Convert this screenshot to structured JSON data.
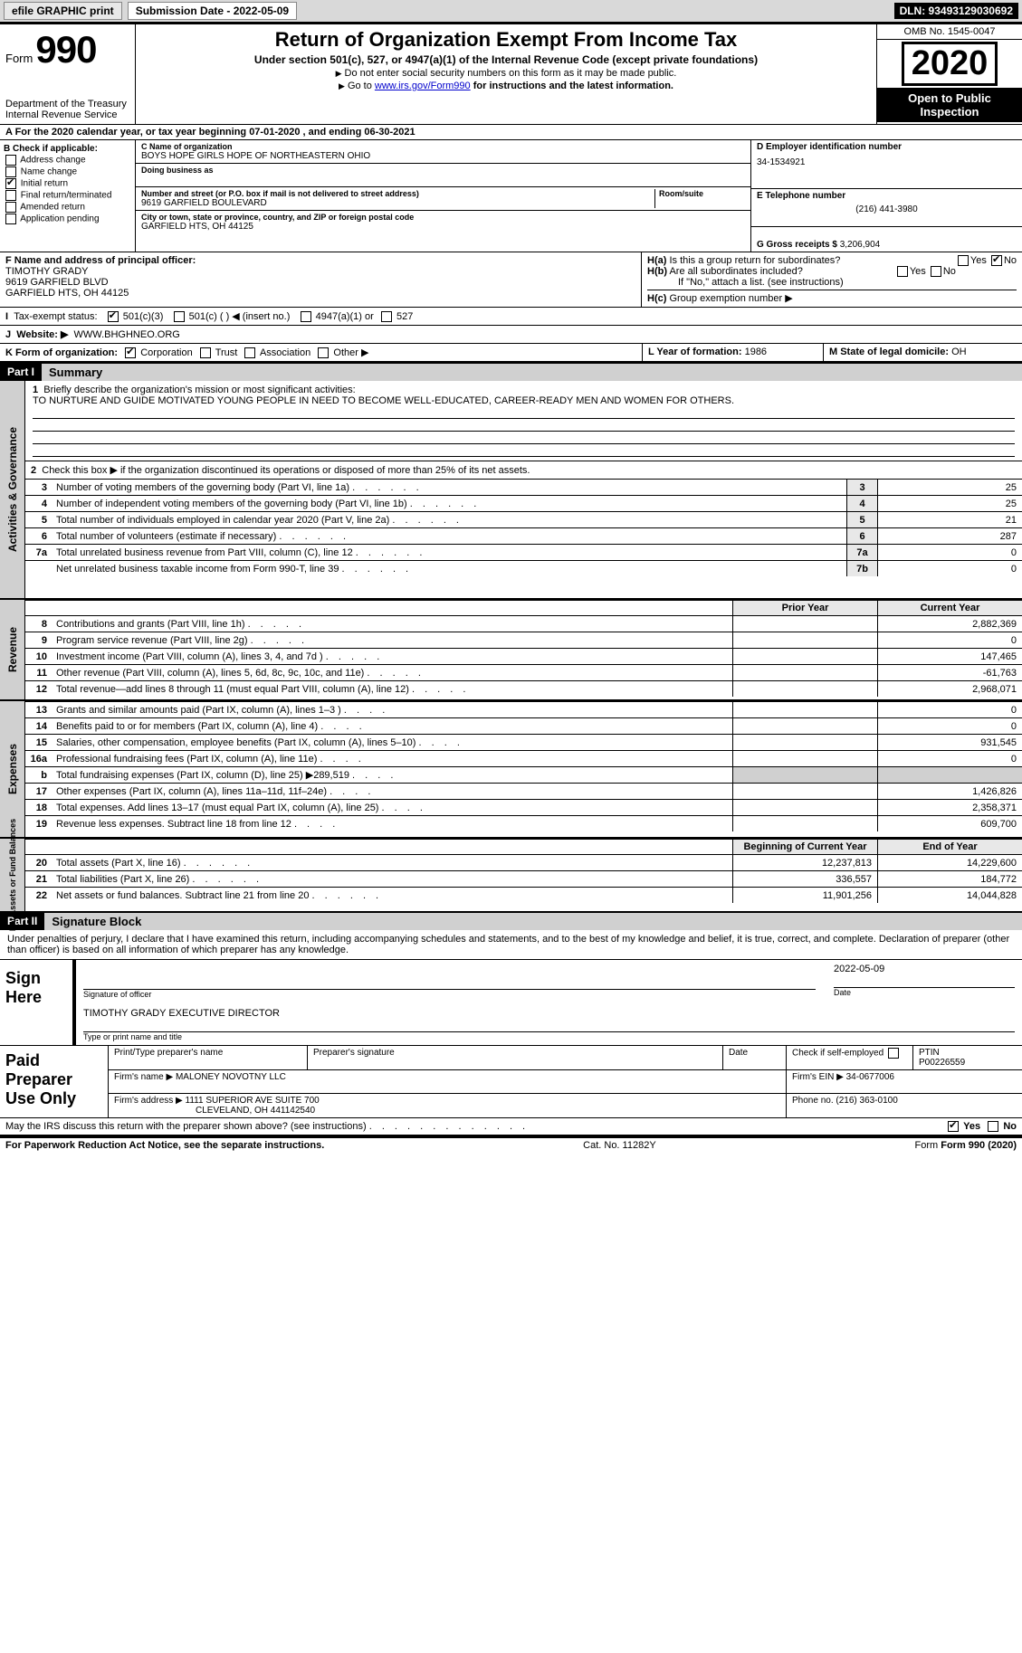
{
  "topbar": {
    "efile": "efile GRAPHIC print",
    "submission": "Submission Date - 2022-05-09",
    "dln": "DLN: 93493129030692"
  },
  "header": {
    "form_word": "Form",
    "form_num": "990",
    "dept1": "Department of the Treasury",
    "dept2": "Internal Revenue Service",
    "title": "Return of Organization Exempt From Income Tax",
    "subtitle": "Under section 501(c), 527, or 4947(a)(1) of the Internal Revenue Code (except private foundations)",
    "warn": "Do not enter social security numbers on this form as it may be made public.",
    "goto_pre": "Go to ",
    "goto_link": "www.irs.gov/Form990",
    "goto_post": " for instructions and the latest information.",
    "omb": "OMB No. 1545-0047",
    "year": "2020",
    "open1": "Open to Public",
    "open2": "Inspection"
  },
  "rowA": "A For the 2020 calendar year, or tax year beginning 07-01-2020   , and ending 06-30-2021",
  "boxB": {
    "title": "B Check if applicable:",
    "opts": [
      "Address change",
      "Name change",
      "Initial return",
      "Final return/terminated",
      "Amended return",
      "Application pending"
    ],
    "checked_idx": 2
  },
  "boxC": {
    "lblC": "C Name of organization",
    "name": "BOYS HOPE GIRLS HOPE OF NORTHEASTERN OHIO",
    "dba_lbl": "Doing business as",
    "addr_lbl": "Number and street (or P.O. box if mail is not delivered to street address)",
    "room_lbl": "Room/suite",
    "addr": "9619 GARFIELD BOULEVARD",
    "city_lbl": "City or town, state or province, country, and ZIP or foreign postal code",
    "city": "GARFIELD HTS, OH  44125"
  },
  "boxD": {
    "lbl": "D Employer identification number",
    "val": "34-1534921"
  },
  "boxE": {
    "lbl": "E Telephone number",
    "val": "(216) 441-3980"
  },
  "boxG": {
    "lbl": "G Gross receipts $",
    "val": "3,206,904"
  },
  "boxF": {
    "lbl": "F Name and address of principal officer:",
    "name": "TIMOTHY GRADY",
    "addr1": "9619 GARFIELD BLVD",
    "addr2": "GARFIELD HTS, OH  44125"
  },
  "boxH": {
    "Ha": "Is this a group return for subordinates?",
    "Hb": "Are all subordinates included?",
    "Hnote": "If \"No,\" attach a list. (see instructions)",
    "Hc": "Group exemption number ▶",
    "yes": "Yes",
    "no": "No"
  },
  "rowI": {
    "lbl": "Tax-exempt status:",
    "o1": "501(c)(3)",
    "o2": "501(c) (  ) ◀ (insert no.)",
    "o3": "4947(a)(1) or",
    "o4": "527"
  },
  "rowJ": {
    "lbl": "Website: ▶",
    "val": "WWW.BHGHNEO.ORG"
  },
  "rowK": {
    "lbl": "K Form of organization:",
    "o1": "Corporation",
    "o2": "Trust",
    "o3": "Association",
    "o4": "Other ▶"
  },
  "rowL": {
    "lbl": "L Year of formation:",
    "val": "1986"
  },
  "rowM": {
    "lbl": "M State of legal domicile:",
    "val": "OH"
  },
  "part1": {
    "hdr": "Part I",
    "title": "Summary"
  },
  "mission": {
    "lbl": "Briefly describe the organization's mission or most significant activities:",
    "text": "TO NURTURE AND GUIDE MOTIVATED YOUNG PEOPLE IN NEED TO BECOME WELL-EDUCATED, CAREER-READY MEN AND WOMEN FOR OTHERS."
  },
  "line2": "Check this box ▶        if the organization discontinued its operations or disposed of more than 25% of its net assets.",
  "gov_lines": [
    {
      "n": "3",
      "d": "Number of voting members of the governing body (Part VI, line 1a)",
      "c": "3",
      "v": "25"
    },
    {
      "n": "4",
      "d": "Number of independent voting members of the governing body (Part VI, line 1b)",
      "c": "4",
      "v": "25"
    },
    {
      "n": "5",
      "d": "Total number of individuals employed in calendar year 2020 (Part V, line 2a)",
      "c": "5",
      "v": "21"
    },
    {
      "n": "6",
      "d": "Total number of volunteers (estimate if necessary)",
      "c": "6",
      "v": "287"
    },
    {
      "n": "7a",
      "d": "Total unrelated business revenue from Part VIII, column (C), line 12",
      "c": "7a",
      "v": "0"
    },
    {
      "n": "",
      "d": "Net unrelated business taxable income from Form 990-T, line 39",
      "c": "7b",
      "v": "0"
    }
  ],
  "colhdr": {
    "prior": "Prior Year",
    "curr": "Current Year"
  },
  "rev_lines": [
    {
      "n": "8",
      "d": "Contributions and grants (Part VIII, line 1h)",
      "p": "",
      "c": "2,882,369"
    },
    {
      "n": "9",
      "d": "Program service revenue (Part VIII, line 2g)",
      "p": "",
      "c": "0"
    },
    {
      "n": "10",
      "d": "Investment income (Part VIII, column (A), lines 3, 4, and 7d )",
      "p": "",
      "c": "147,465"
    },
    {
      "n": "11",
      "d": "Other revenue (Part VIII, column (A), lines 5, 6d, 8c, 9c, 10c, and 11e)",
      "p": "",
      "c": "-61,763"
    },
    {
      "n": "12",
      "d": "Total revenue—add lines 8 through 11 (must equal Part VIII, column (A), line 12)",
      "p": "",
      "c": "2,968,071"
    }
  ],
  "exp_lines": [
    {
      "n": "13",
      "d": "Grants and similar amounts paid (Part IX, column (A), lines 1–3 )",
      "p": "",
      "c": "0"
    },
    {
      "n": "14",
      "d": "Benefits paid to or for members (Part IX, column (A), line 4)",
      "p": "",
      "c": "0"
    },
    {
      "n": "15",
      "d": "Salaries, other compensation, employee benefits (Part IX, column (A), lines 5–10)",
      "p": "",
      "c": "931,545"
    },
    {
      "n": "16a",
      "d": "Professional fundraising fees (Part IX, column (A), line 11e)",
      "p": "",
      "c": "0"
    },
    {
      "n": "b",
      "d": "Total fundraising expenses (Part IX, column (D), line 25) ▶289,519",
      "p": "grey",
      "c": "grey"
    },
    {
      "n": "17",
      "d": "Other expenses (Part IX, column (A), lines 11a–11d, 11f–24e)",
      "p": "",
      "c": "1,426,826"
    },
    {
      "n": "18",
      "d": "Total expenses. Add lines 13–17 (must equal Part IX, column (A), line 25)",
      "p": "",
      "c": "2,358,371"
    },
    {
      "n": "19",
      "d": "Revenue less expenses. Subtract line 18 from line 12",
      "p": "",
      "c": "609,700"
    }
  ],
  "na_hdr": {
    "beg": "Beginning of Current Year",
    "end": "End of Year"
  },
  "na_lines": [
    {
      "n": "20",
      "d": "Total assets (Part X, line 16)",
      "p": "12,237,813",
      "c": "14,229,600"
    },
    {
      "n": "21",
      "d": "Total liabilities (Part X, line 26)",
      "p": "336,557",
      "c": "184,772"
    },
    {
      "n": "22",
      "d": "Net assets or fund balances. Subtract line 21 from line 20",
      "p": "11,901,256",
      "c": "14,044,828"
    }
  ],
  "vlabels": {
    "gov": "Activities & Governance",
    "rev": "Revenue",
    "exp": "Expenses",
    "na": "Net Assets or\nFund Balances"
  },
  "part2": {
    "hdr": "Part II",
    "title": "Signature Block"
  },
  "sig": {
    "decl": "Under penalties of perjury, I declare that I have examined this return, including accompanying schedules and statements, and to the best of my knowledge and belief, it is true, correct, and complete. Declaration of preparer (other than officer) is based on all information of which preparer has any knowledge.",
    "here": "Sign Here",
    "sig_of": "Signature of officer",
    "date_lbl": "Date",
    "date": "2022-05-09",
    "name": "TIMOTHY GRADY  EXECUTIVE DIRECTOR",
    "name_lbl": "Type or print name and title"
  },
  "paid": {
    "label": "Paid Preparer Use Only",
    "h1": "Print/Type preparer's name",
    "h2": "Preparer's signature",
    "h3": "Date",
    "h4": "Check         if self-employed",
    "h5": "PTIN",
    "ptin": "P00226559",
    "firm_lbl": "Firm's name   ▶",
    "firm": "MALONEY NOVOTNY LLC",
    "ein_lbl": "Firm's EIN ▶",
    "ein": "34-0677006",
    "addr_lbl": "Firm's address ▶",
    "addr": "1111 SUPERIOR AVE SUITE 700",
    "city": "CLEVELAND, OH  441142540",
    "phone_lbl": "Phone no.",
    "phone": "(216) 363-0100"
  },
  "discuss": {
    "q": "May the IRS discuss this return with the preparer shown above? (see instructions)",
    "yes": "Yes",
    "no": "No"
  },
  "footer": {
    "pra": "For Paperwork Reduction Act Notice, see the separate instructions.",
    "cat": "Cat. No. 11282Y",
    "form": "Form 990 (2020)"
  },
  "colors": {
    "grey": "#d0d0d0",
    "lgrey": "#e8e8e8",
    "black": "#000000"
  }
}
